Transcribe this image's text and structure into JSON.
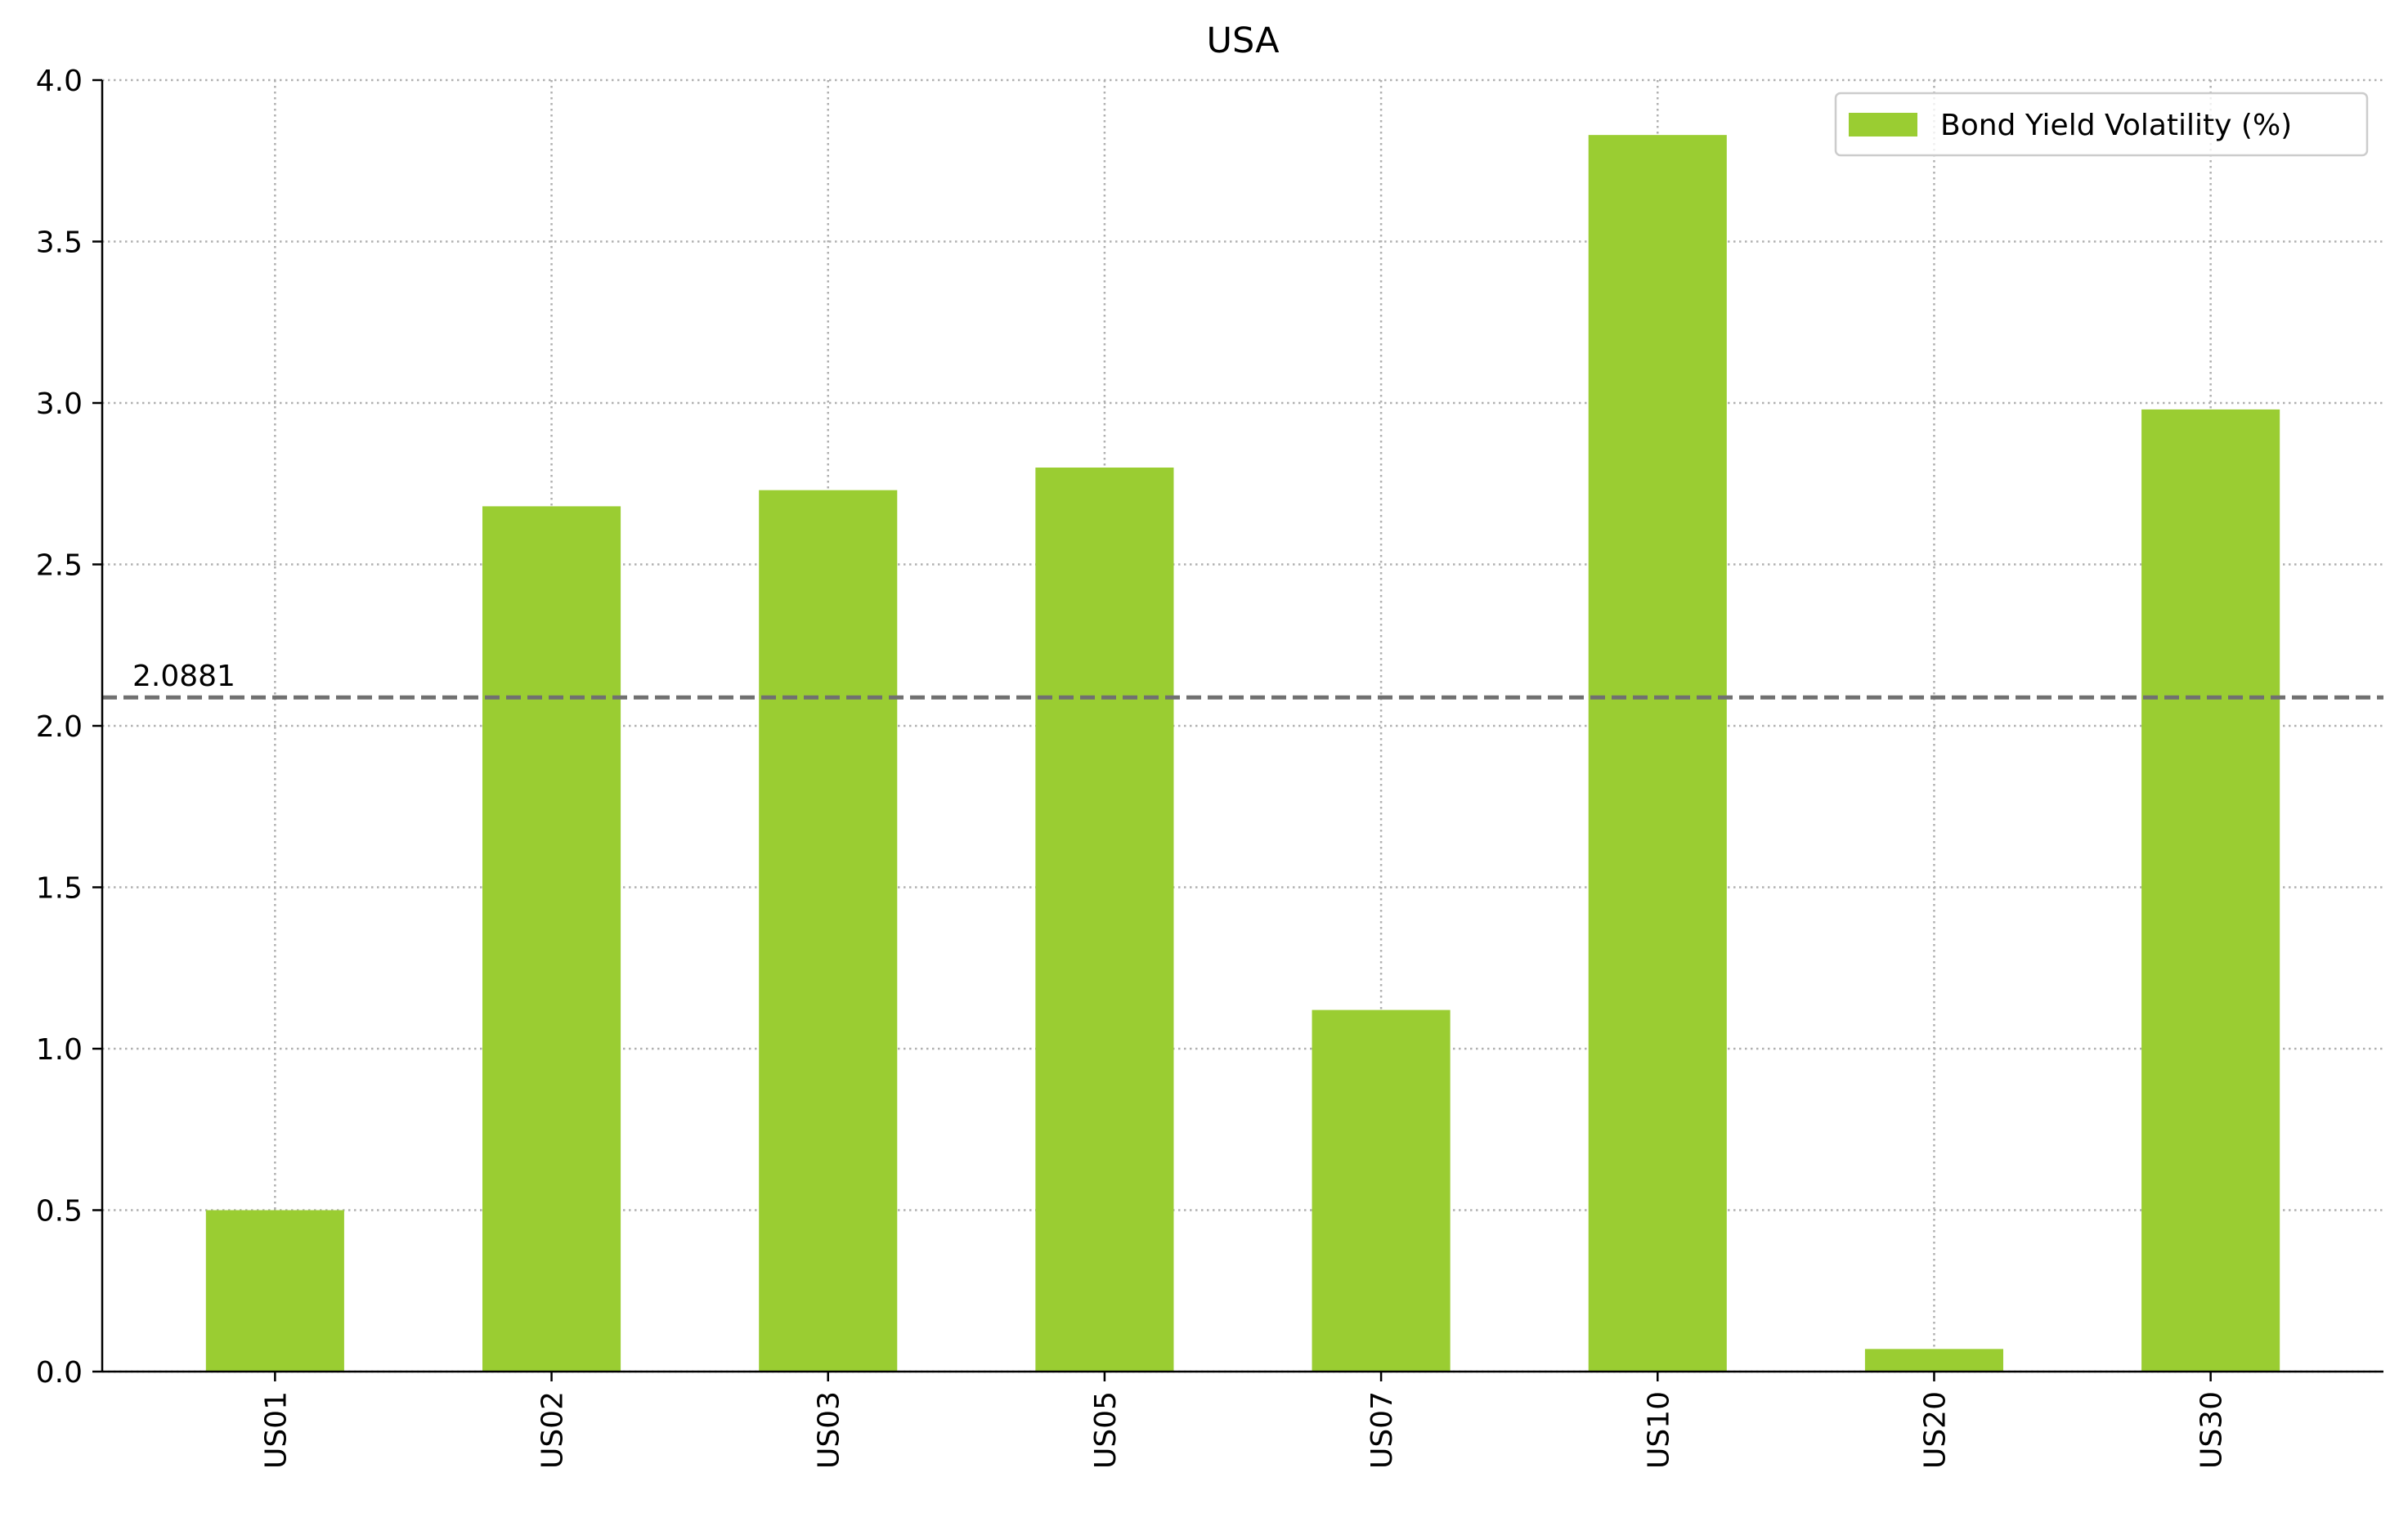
{
  "chart_data": {
    "type": "bar",
    "title": "USA",
    "xlabel": "",
    "ylabel": "",
    "categories": [
      "US01",
      "US02",
      "US03",
      "US05",
      "US07",
      "US10",
      "US20",
      "US30"
    ],
    "series": [
      {
        "name": "Bond Yield Volatility (%)",
        "values": [
          0.5,
          2.68,
          2.73,
          2.8,
          1.12,
          3.83,
          0.07,
          2.98
        ],
        "color": "#9acd32"
      }
    ],
    "ylim": [
      0,
      4.0
    ],
    "yticks": [
      0.0,
      0.5,
      1.0,
      1.5,
      2.0,
      2.5,
      3.0,
      3.5,
      4.0
    ],
    "ytick_labels": [
      "0.0",
      "0.5",
      "1.0",
      "1.5",
      "2.0",
      "2.5",
      "3.0",
      "3.5",
      "4.0"
    ],
    "reference_line": {
      "value": 2.0881,
      "label": "2.0881",
      "style": "dashed",
      "color": "#707070"
    },
    "grid": true,
    "grid_style": "dotted",
    "legend_position": "top-right",
    "x_tick_rotation": "vertical"
  }
}
